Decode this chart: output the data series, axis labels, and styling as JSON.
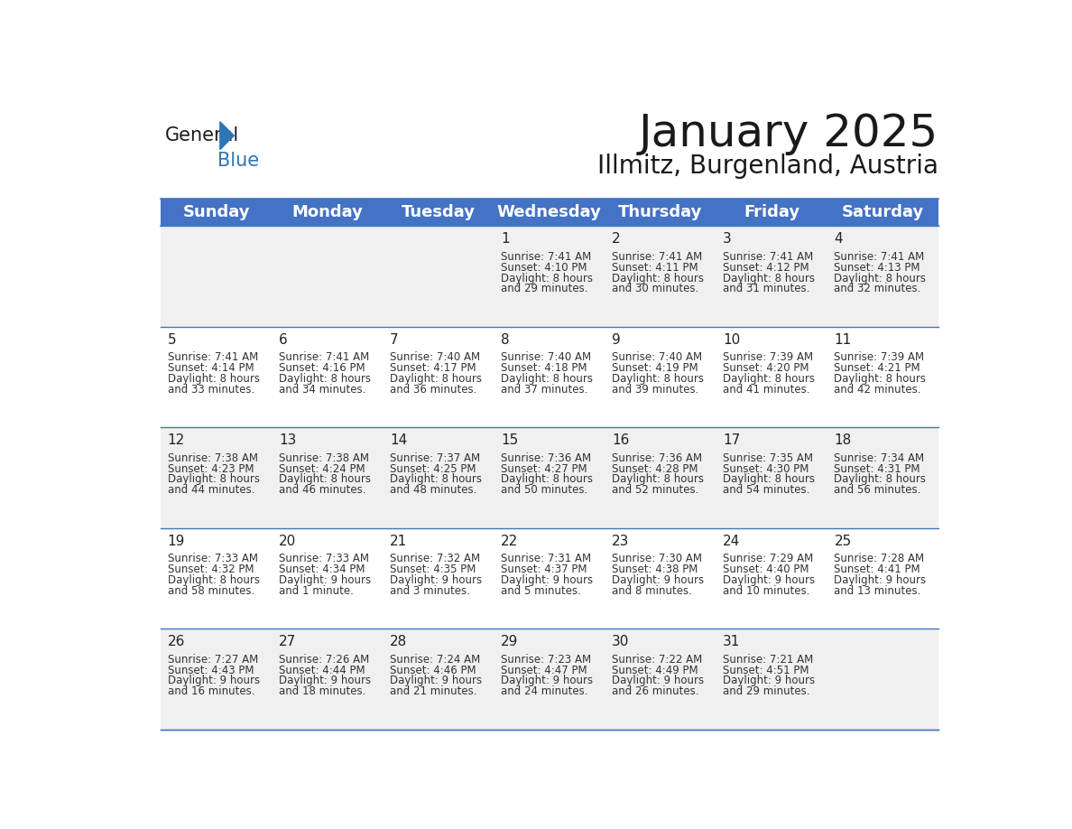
{
  "title": "January 2025",
  "subtitle": "Illmitz, Burgenland, Austria",
  "header_bg": "#4472C4",
  "header_text_color": "#FFFFFF",
  "header_font_size": 13,
  "day_names": [
    "Sunday",
    "Monday",
    "Tuesday",
    "Wednesday",
    "Thursday",
    "Friday",
    "Saturday"
  ],
  "title_font_size": 36,
  "subtitle_font_size": 20,
  "cell_bg_odd": "#F0F0F0",
  "cell_bg_even": "#FFFFFF",
  "cell_text_color": "#333333",
  "cell_day_num_color": "#222222",
  "line_color": "#4472C4",
  "weeks": [
    [
      {
        "day": null,
        "info": ""
      },
      {
        "day": null,
        "info": ""
      },
      {
        "day": null,
        "info": ""
      },
      {
        "day": 1,
        "sunrise": "Sunrise: 7:41 AM",
        "sunset": "Sunset: 4:10 PM",
        "daylight": "Daylight: 8 hours",
        "rest": "and 29 minutes."
      },
      {
        "day": 2,
        "sunrise": "Sunrise: 7:41 AM",
        "sunset": "Sunset: 4:11 PM",
        "daylight": "Daylight: 8 hours",
        "rest": "and 30 minutes."
      },
      {
        "day": 3,
        "sunrise": "Sunrise: 7:41 AM",
        "sunset": "Sunset: 4:12 PM",
        "daylight": "Daylight: 8 hours",
        "rest": "and 31 minutes."
      },
      {
        "day": 4,
        "sunrise": "Sunrise: 7:41 AM",
        "sunset": "Sunset: 4:13 PM",
        "daylight": "Daylight: 8 hours",
        "rest": "and 32 minutes."
      }
    ],
    [
      {
        "day": 5,
        "sunrise": "Sunrise: 7:41 AM",
        "sunset": "Sunset: 4:14 PM",
        "daylight": "Daylight: 8 hours",
        "rest": "and 33 minutes."
      },
      {
        "day": 6,
        "sunrise": "Sunrise: 7:41 AM",
        "sunset": "Sunset: 4:16 PM",
        "daylight": "Daylight: 8 hours",
        "rest": "and 34 minutes."
      },
      {
        "day": 7,
        "sunrise": "Sunrise: 7:40 AM",
        "sunset": "Sunset: 4:17 PM",
        "daylight": "Daylight: 8 hours",
        "rest": "and 36 minutes."
      },
      {
        "day": 8,
        "sunrise": "Sunrise: 7:40 AM",
        "sunset": "Sunset: 4:18 PM",
        "daylight": "Daylight: 8 hours",
        "rest": "and 37 minutes."
      },
      {
        "day": 9,
        "sunrise": "Sunrise: 7:40 AM",
        "sunset": "Sunset: 4:19 PM",
        "daylight": "Daylight: 8 hours",
        "rest": "and 39 minutes."
      },
      {
        "day": 10,
        "sunrise": "Sunrise: 7:39 AM",
        "sunset": "Sunset: 4:20 PM",
        "daylight": "Daylight: 8 hours",
        "rest": "and 41 minutes."
      },
      {
        "day": 11,
        "sunrise": "Sunrise: 7:39 AM",
        "sunset": "Sunset: 4:21 PM",
        "daylight": "Daylight: 8 hours",
        "rest": "and 42 minutes."
      }
    ],
    [
      {
        "day": 12,
        "sunrise": "Sunrise: 7:38 AM",
        "sunset": "Sunset: 4:23 PM",
        "daylight": "Daylight: 8 hours",
        "rest": "and 44 minutes."
      },
      {
        "day": 13,
        "sunrise": "Sunrise: 7:38 AM",
        "sunset": "Sunset: 4:24 PM",
        "daylight": "Daylight: 8 hours",
        "rest": "and 46 minutes."
      },
      {
        "day": 14,
        "sunrise": "Sunrise: 7:37 AM",
        "sunset": "Sunset: 4:25 PM",
        "daylight": "Daylight: 8 hours",
        "rest": "and 48 minutes."
      },
      {
        "day": 15,
        "sunrise": "Sunrise: 7:36 AM",
        "sunset": "Sunset: 4:27 PM",
        "daylight": "Daylight: 8 hours",
        "rest": "and 50 minutes."
      },
      {
        "day": 16,
        "sunrise": "Sunrise: 7:36 AM",
        "sunset": "Sunset: 4:28 PM",
        "daylight": "Daylight: 8 hours",
        "rest": "and 52 minutes."
      },
      {
        "day": 17,
        "sunrise": "Sunrise: 7:35 AM",
        "sunset": "Sunset: 4:30 PM",
        "daylight": "Daylight: 8 hours",
        "rest": "and 54 minutes."
      },
      {
        "day": 18,
        "sunrise": "Sunrise: 7:34 AM",
        "sunset": "Sunset: 4:31 PM",
        "daylight": "Daylight: 8 hours",
        "rest": "and 56 minutes."
      }
    ],
    [
      {
        "day": 19,
        "sunrise": "Sunrise: 7:33 AM",
        "sunset": "Sunset: 4:32 PM",
        "daylight": "Daylight: 8 hours",
        "rest": "and 58 minutes."
      },
      {
        "day": 20,
        "sunrise": "Sunrise: 7:33 AM",
        "sunset": "Sunset: 4:34 PM",
        "daylight": "Daylight: 9 hours",
        "rest": "and 1 minute."
      },
      {
        "day": 21,
        "sunrise": "Sunrise: 7:32 AM",
        "sunset": "Sunset: 4:35 PM",
        "daylight": "Daylight: 9 hours",
        "rest": "and 3 minutes."
      },
      {
        "day": 22,
        "sunrise": "Sunrise: 7:31 AM",
        "sunset": "Sunset: 4:37 PM",
        "daylight": "Daylight: 9 hours",
        "rest": "and 5 minutes."
      },
      {
        "day": 23,
        "sunrise": "Sunrise: 7:30 AM",
        "sunset": "Sunset: 4:38 PM",
        "daylight": "Daylight: 9 hours",
        "rest": "and 8 minutes."
      },
      {
        "day": 24,
        "sunrise": "Sunrise: 7:29 AM",
        "sunset": "Sunset: 4:40 PM",
        "daylight": "Daylight: 9 hours",
        "rest": "and 10 minutes."
      },
      {
        "day": 25,
        "sunrise": "Sunrise: 7:28 AM",
        "sunset": "Sunset: 4:41 PM",
        "daylight": "Daylight: 9 hours",
        "rest": "and 13 minutes."
      }
    ],
    [
      {
        "day": 26,
        "sunrise": "Sunrise: 7:27 AM",
        "sunset": "Sunset: 4:43 PM",
        "daylight": "Daylight: 9 hours",
        "rest": "and 16 minutes."
      },
      {
        "day": 27,
        "sunrise": "Sunrise: 7:26 AM",
        "sunset": "Sunset: 4:44 PM",
        "daylight": "Daylight: 9 hours",
        "rest": "and 18 minutes."
      },
      {
        "day": 28,
        "sunrise": "Sunrise: 7:24 AM",
        "sunset": "Sunset: 4:46 PM",
        "daylight": "Daylight: 9 hours",
        "rest": "and 21 minutes."
      },
      {
        "day": 29,
        "sunrise": "Sunrise: 7:23 AM",
        "sunset": "Sunset: 4:47 PM",
        "daylight": "Daylight: 9 hours",
        "rest": "and 24 minutes."
      },
      {
        "day": 30,
        "sunrise": "Sunrise: 7:22 AM",
        "sunset": "Sunset: 4:49 PM",
        "daylight": "Daylight: 9 hours",
        "rest": "and 26 minutes."
      },
      {
        "day": 31,
        "sunrise": "Sunrise: 7:21 AM",
        "sunset": "Sunset: 4:51 PM",
        "daylight": "Daylight: 9 hours",
        "rest": "and 29 minutes."
      },
      {
        "day": null,
        "sunrise": "",
        "sunset": "",
        "daylight": "",
        "rest": ""
      }
    ]
  ],
  "logo_general_color": "#1a1a1a",
  "logo_blue_color": "#2E75B6",
  "logo_triangle_color": "#2E75B6"
}
